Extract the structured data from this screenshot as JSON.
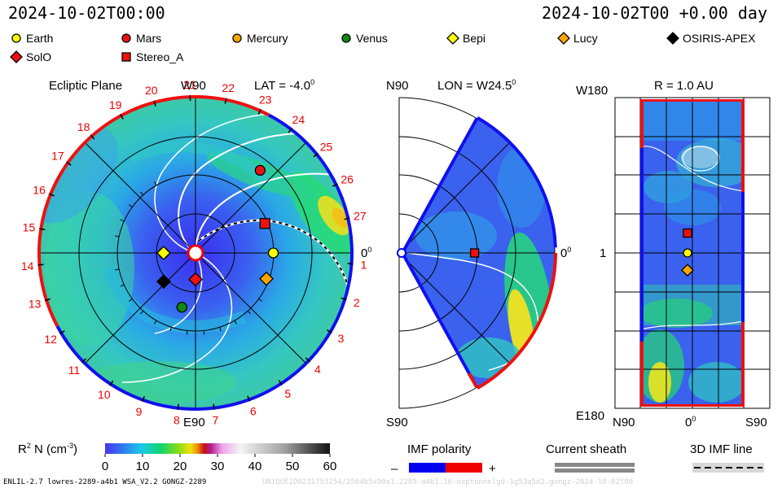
{
  "header": {
    "date_left": "2024-10-02T00:00",
    "date_right": "2024-10-02T00 +0.00 day"
  },
  "legend": [
    {
      "name": "Earth",
      "symbol": "circle",
      "color": "#ffff00"
    },
    {
      "name": "Mars",
      "symbol": "circle",
      "color": "#ee1111"
    },
    {
      "name": "Mercury",
      "symbol": "circle",
      "color": "#ffa500"
    },
    {
      "name": "Venus",
      "symbol": "circle",
      "color": "#118811"
    },
    {
      "name": "Bepi",
      "symbol": "diamond",
      "color": "#ffff00"
    },
    {
      "name": "Lucy",
      "symbol": "diamond",
      "color": "#ffa500"
    },
    {
      "name": "OSIRIS-APEX",
      "symbol": "diamond",
      "color": "#000000"
    },
    {
      "name": "SolO",
      "symbol": "diamond",
      "color": "#ee1111"
    },
    {
      "name": "Stereo_A",
      "symbol": "square",
      "color": "#ee1111"
    }
  ],
  "chart_data": [
    {
      "type": "heatmap",
      "title": "Ecliptic Plane",
      "subtitle": "LAT = -4.0",
      "subtitle_deg": "0",
      "top_label": "W90",
      "bottom_label": "E90",
      "right_label": "0",
      "right_label_deg": "0",
      "carrington_ticks": [
        "1",
        "2",
        "3",
        "4",
        "5",
        "6",
        "7",
        "8",
        "9",
        "10",
        "11",
        "12",
        "13",
        "14",
        "15",
        "16",
        "17",
        "18",
        "19",
        "20",
        "21",
        "22",
        "23",
        "24",
        "25",
        "26",
        "27"
      ],
      "bodies": [
        {
          "name": "Earth",
          "r_au": 1.0,
          "lon_deg": 0
        },
        {
          "name": "Mars",
          "r_au": 1.35,
          "lon_deg": 52
        },
        {
          "name": "Mercury",
          "r_au": 0.41,
          "lon_deg": 180
        },
        {
          "name": "Venus",
          "r_au": 0.72,
          "lon_deg": 256
        },
        {
          "name": "Bepi",
          "r_au": 0.41,
          "lon_deg": 180
        },
        {
          "name": "Lucy",
          "r_au": 0.97,
          "lon_deg": -20
        },
        {
          "name": "OSIRIS-APEX",
          "r_au": 0.55,
          "lon_deg": 222
        },
        {
          "name": "SolO",
          "r_au": 0.34,
          "lon_deg": 270
        },
        {
          "name": "Stereo_A",
          "r_au": 0.97,
          "lon_deg": 23
        }
      ]
    },
    {
      "type": "heatmap",
      "title": "LON = W24.5",
      "title_deg": "0",
      "top_label": "N90",
      "bottom_label": "S90",
      "right_label": "0",
      "right_label_deg": "0",
      "bodies": [
        {
          "name": "Stereo_A",
          "r_au": 0.97,
          "lat_deg": 0
        }
      ]
    },
    {
      "type": "heatmap",
      "title": "R = 1.0 AU",
      "top_label": "W180",
      "bottom_label": "E180",
      "left_label": "1",
      "x_labels": [
        "N90",
        "0",
        "S90"
      ],
      "x_label_deg": "0",
      "bodies": [
        {
          "name": "Stereo_A",
          "lat_deg": 0,
          "lon_deg": 23
        },
        {
          "name": "Earth",
          "lat_deg": 0,
          "lon_deg": 0
        },
        {
          "name": "Lucy",
          "lat_deg": 0,
          "lon_deg": -20
        }
      ]
    }
  ],
  "colorbar": {
    "label": "R",
    "label_sup": "2",
    "label_mid": " N (cm",
    "label_sup2": "-3",
    "label_end": ")",
    "ticks": [
      "0",
      "10",
      "20",
      "30",
      "40",
      "50",
      "60"
    ],
    "range": [
      0,
      60
    ]
  },
  "imf_polarity": {
    "label": "IMF polarity",
    "minus": "–",
    "plus": "+",
    "neg_color": "#0000ee",
    "pos_color": "#ee0000"
  },
  "current_sheath": {
    "label": "Current sheath"
  },
  "imf_line": {
    "label": "3D IMF line"
  },
  "footer": {
    "left": "ENLIL-2.7 lowres-2289-a4b1 WSA_V2.2 GONGZ-2289",
    "right": "UNIQUEID0231753254/2564b5x90x1.2289-a4b1.16-noptunnelgd-1g53q5d2.gongz-2024-10-02T00"
  }
}
